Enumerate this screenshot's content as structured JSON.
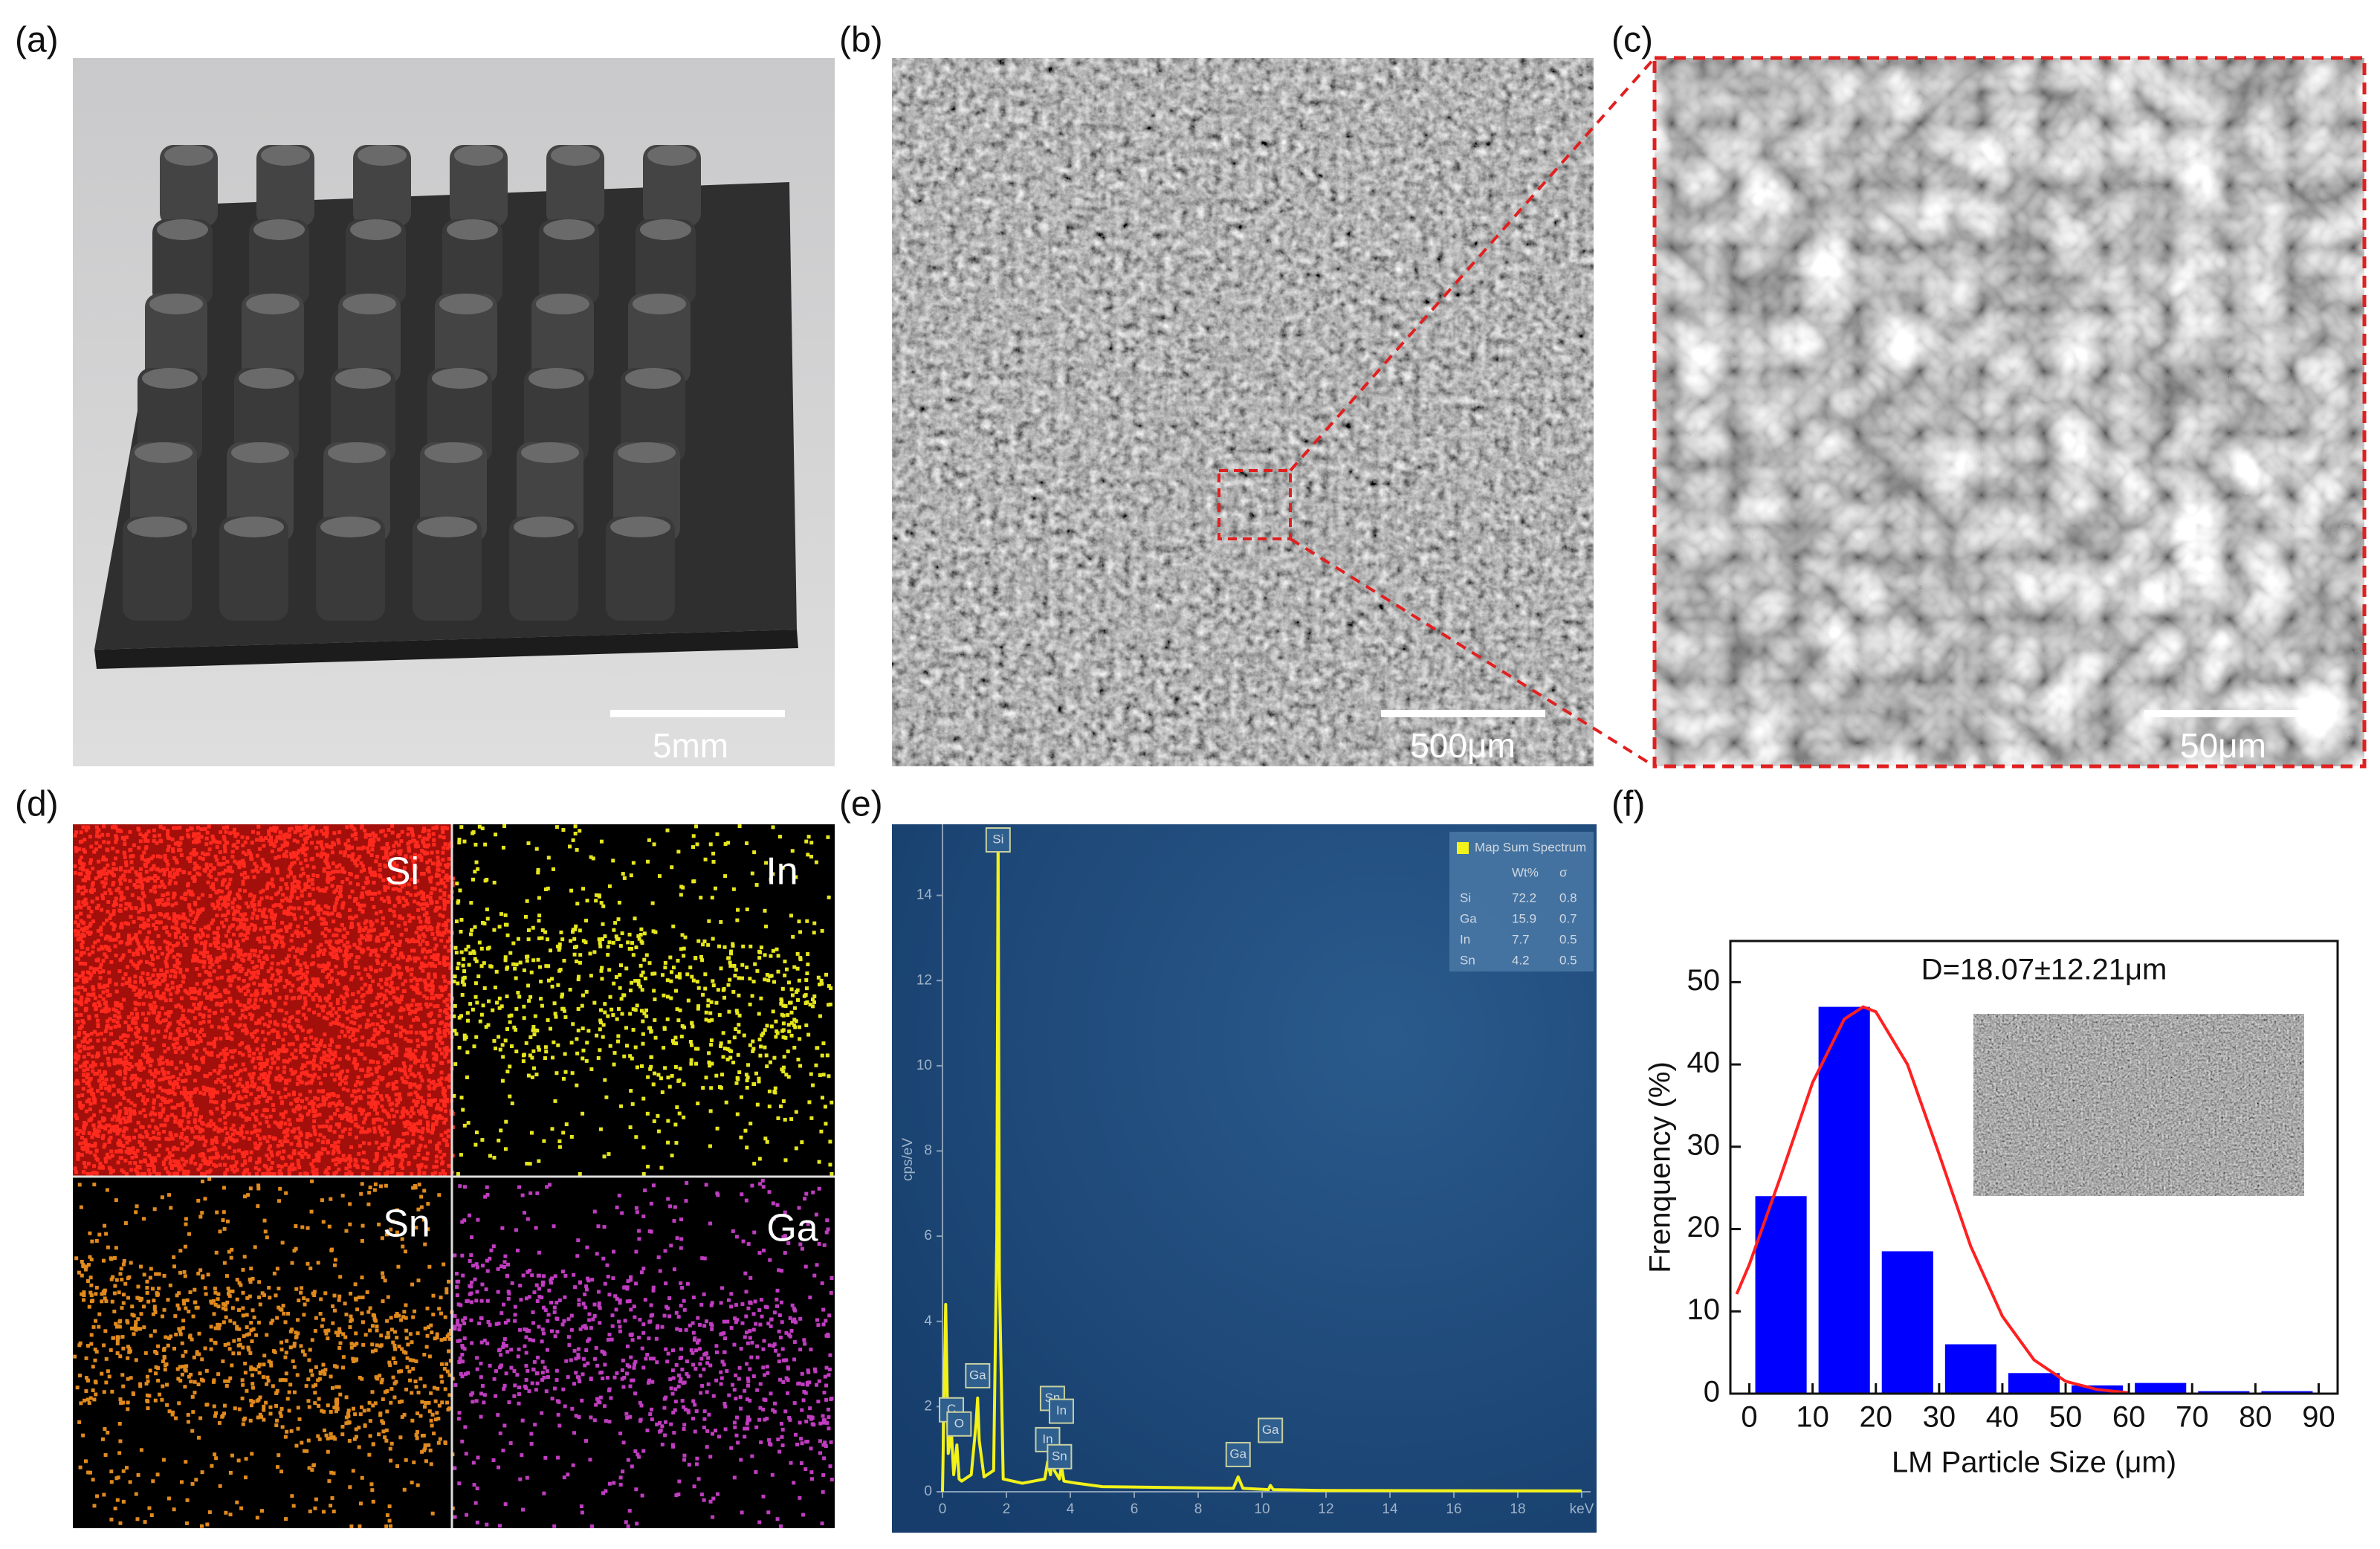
{
  "panels": [
    {
      "label": "(a)",
      "scale_bar": "5mm"
    },
    {
      "label": "(b)",
      "scale_bar": "500μm"
    },
    {
      "label": "(c)",
      "scale_bar": "50μm"
    },
    {
      "label": "(d)",
      "maps": [
        "Si",
        "In",
        "Sn",
        "Ga"
      ]
    },
    {
      "label": "(e)"
    },
    {
      "label": "(f)"
    }
  ],
  "chart_data": [
    {
      "type": "line",
      "ylabel": "cps/eV",
      "color": "#f2f21a",
      "x": [
        0,
        0.1,
        0.18,
        0.28,
        0.35,
        0.45,
        0.52,
        0.6,
        0.9,
        1.05,
        1.1,
        1.15,
        1.3,
        1.6,
        1.7,
        1.74,
        1.78,
        1.9,
        2.5,
        3.2,
        3.29,
        3.38,
        3.44,
        3.5,
        3.66,
        3.72,
        3.8,
        4.2,
        5,
        9.1,
        9.25,
        9.4,
        10.2,
        10.26,
        10.35,
        12,
        20
      ],
      "values": [
        0,
        4.4,
        0.9,
        1.4,
        0.4,
        1.1,
        0.3,
        0.25,
        0.4,
        1.6,
        2.2,
        1.2,
        0.35,
        0.5,
        6,
        15.5,
        5,
        0.3,
        0.2,
        0.3,
        0.7,
        0.4,
        0.9,
        0.5,
        0.3,
        0.6,
        0.25,
        0.2,
        0.12,
        0.08,
        0.35,
        0.08,
        0.05,
        0.15,
        0.05,
        0.03,
        0.02
      ],
      "xlim": [
        0,
        20.5
      ],
      "ylim": [
        0,
        16
      ],
      "xticks": [
        0,
        2,
        4,
        6,
        8,
        10,
        12,
        14,
        16,
        18,
        {
          "value": 20,
          "label": "keV"
        }
      ],
      "yticks": [
        0,
        2,
        4,
        6,
        8,
        10,
        12,
        14
      ],
      "peak_labels": [
        {
          "text": "C",
          "x": 0.28
        },
        {
          "text": "O",
          "x": 0.52
        },
        {
          "text": "Ga",
          "x": 1.1
        },
        {
          "text": "Si",
          "x": 1.74
        },
        {
          "text": "In",
          "x": 3.29
        },
        {
          "text": "Sn",
          "x": 3.44
        },
        {
          "text": "Sn",
          "x": 3.66
        },
        {
          "text": "In",
          "x": 3.72
        },
        {
          "text": "Ga",
          "x": 9.25
        },
        {
          "text": "Ga",
          "x": 10.26
        }
      ],
      "legend": {
        "title": "Map Sum Spectrum",
        "columns": [
          "Wt%",
          "σ"
        ],
        "rows": [
          [
            "Si",
            72.2,
            0.8
          ],
          [
            "Ga",
            15.9,
            0.7
          ],
          [
            "In",
            7.7,
            0.5
          ],
          [
            "Sn",
            4.2,
            0.5
          ]
        ]
      }
    },
    {
      "type": "histogram",
      "xlabel": "LM Particle Size (μm)",
      "ylabel": "Frenquency (%)",
      "annotation": "D=18.07±12.21μm",
      "bins": [
        0,
        10,
        20,
        30,
        40,
        50,
        60,
        70,
        80,
        90
      ],
      "values": [
        24,
        47,
        17.3,
        6,
        2.5,
        1,
        1.3,
        0.3,
        0.3
      ],
      "color": "#0000ff",
      "fit": {
        "color": "#ff2020",
        "x": [
          -2,
          0,
          5,
          10,
          15,
          18,
          20,
          25,
          30,
          35,
          40,
          45,
          50,
          55,
          60
        ],
        "values": [
          12.1,
          15.7,
          26.5,
          37.8,
          45.5,
          47,
          46.4,
          40,
          29.1,
          17.9,
          9.4,
          4.1,
          1.5,
          0.5,
          0.1
        ]
      },
      "xlim": [
        -3,
        93
      ],
      "ylim": [
        0,
        55
      ],
      "xticks": [
        0,
        10,
        20,
        30,
        40,
        50,
        60,
        70,
        80,
        90
      ],
      "yticks": [
        0,
        10,
        20,
        30,
        40,
        50
      ]
    }
  ]
}
